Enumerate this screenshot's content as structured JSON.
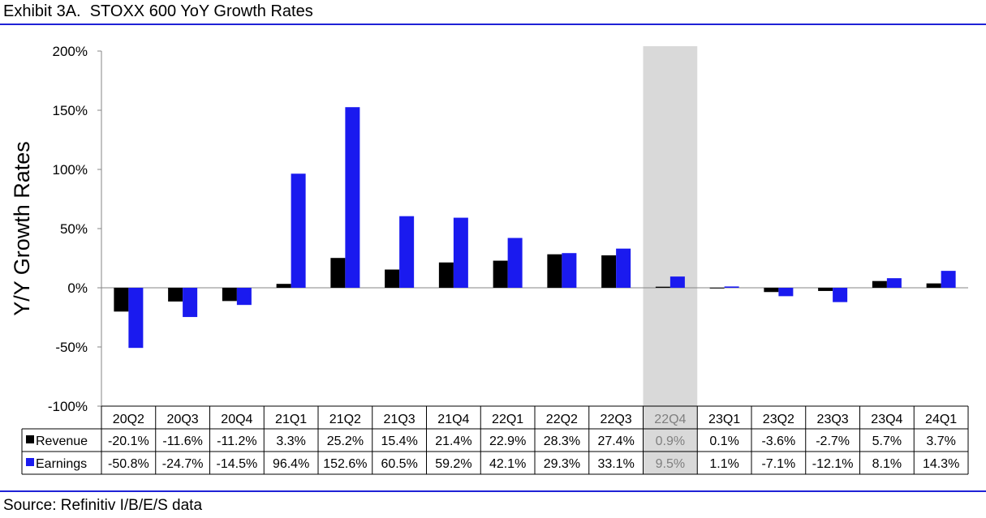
{
  "header": {
    "title": "Exhibit 3A.  STOXX 600 YoY Growth Rates"
  },
  "footer": {
    "source": "Source: Refinitiv I/B/E/S data"
  },
  "colors": {
    "revenue": "#000000",
    "earnings": "#1a1aef",
    "highlight": "#d9d9d9",
    "rule": "#1f22d6",
    "axis": "#868686"
  },
  "chart_data": {
    "type": "bar",
    "title": "",
    "xlabel": "",
    "ylabel": "Y/Y Growth Rates",
    "ylim": [
      -100,
      200
    ],
    "yticks": [
      "200%",
      "150%",
      "100%",
      "50%",
      "0%",
      "-50%",
      "-100%"
    ],
    "categories": [
      "20Q2",
      "20Q3",
      "20Q4",
      "21Q1",
      "21Q2",
      "21Q3",
      "21Q4",
      "22Q1",
      "22Q2",
      "22Q3",
      "22Q4",
      "23Q1",
      "23Q2",
      "23Q3",
      "23Q4",
      "24Q1"
    ],
    "highlight_category": "22Q4",
    "grid": false,
    "series": [
      {
        "name": "Revenue",
        "values": [
          -20.1,
          -11.6,
          -11.2,
          3.3,
          25.2,
          15.4,
          21.4,
          22.9,
          28.3,
          27.4,
          0.9,
          0.1,
          -3.6,
          -2.7,
          5.7,
          3.7
        ],
        "labels": [
          "-20.1%",
          "-11.6%",
          "-11.2%",
          "3.3%",
          "25.2%",
          "15.4%",
          "21.4%",
          "22.9%",
          "28.3%",
          "27.4%",
          "0.9%",
          "0.1%",
          "-3.6%",
          "-2.7%",
          "5.7%",
          "3.7%"
        ]
      },
      {
        "name": "Earnings",
        "values": [
          -50.8,
          -24.7,
          -14.5,
          96.4,
          152.6,
          60.5,
          59.2,
          42.1,
          29.3,
          33.1,
          9.5,
          1.1,
          -7.1,
          -12.1,
          8.1,
          14.3
        ],
        "labels": [
          "-50.8%",
          "-24.7%",
          "-14.5%",
          "96.4%",
          "152.6%",
          "60.5%",
          "59.2%",
          "42.1%",
          "29.3%",
          "33.1%",
          "9.5%",
          "1.1%",
          "-7.1%",
          "-12.1%",
          "8.1%",
          "14.3%"
        ]
      }
    ]
  }
}
